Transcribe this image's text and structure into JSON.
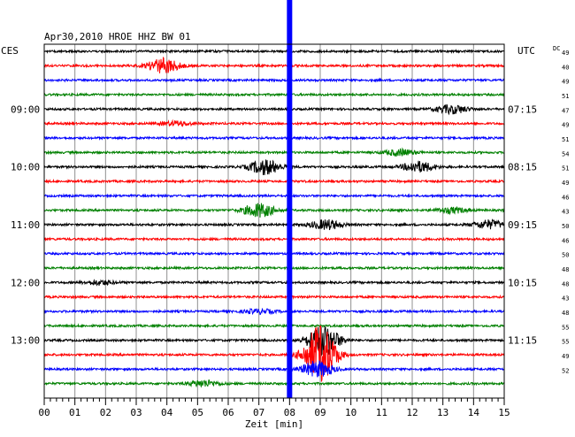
{
  "header": {
    "title": "Apr30,2010   HROE HHZ BW 01",
    "left_zone": "CES",
    "right_zone": "UTC",
    "dc_label": "DC"
  },
  "chart_data": {
    "type": "line",
    "title": "Apr30,2010   HROE HHZ BW 01",
    "xlabel": "Zeit [min]",
    "xlim": [
      0,
      15
    ],
    "x_ticks": [
      "00",
      "01",
      "02",
      "03",
      "04",
      "05",
      "06",
      "07",
      "08",
      "09",
      "10",
      "11",
      "12",
      "13",
      "14",
      "15"
    ],
    "grid": true,
    "trace_count": 24,
    "trace_colors": [
      "#000000",
      "#ff0000",
      "#0000ff",
      "#008000"
    ],
    "left_time_labels": [
      {
        "trace": 4,
        "label": "09:00"
      },
      {
        "trace": 8,
        "label": "10:00"
      },
      {
        "trace": 12,
        "label": "11:00"
      },
      {
        "trace": 16,
        "label": "12:00"
      },
      {
        "trace": 20,
        "label": "13:00"
      }
    ],
    "right_time_labels": [
      {
        "trace": 4,
        "label": "07:15"
      },
      {
        "trace": 8,
        "label": "08:15"
      },
      {
        "trace": 12,
        "label": "09:15"
      },
      {
        "trace": 16,
        "label": "10:15"
      },
      {
        "trace": 20,
        "label": "11:15"
      }
    ],
    "dc_values": [
      "49",
      "40",
      "49",
      "51",
      "47",
      "49",
      "51",
      "54",
      "51",
      "49",
      "46",
      "43",
      "50",
      "46",
      "50",
      "48",
      "48",
      "43",
      "48",
      "55",
      "55",
      "49",
      "52"
    ],
    "marker": {
      "minute": 8.0,
      "color": "#0000ff"
    },
    "events": [
      {
        "trace": 1,
        "minute": 3.9,
        "amp": 1.4
      },
      {
        "trace": 4,
        "minute": 13.3,
        "amp": 0.8
      },
      {
        "trace": 5,
        "minute": 4.3,
        "amp": 0.4
      },
      {
        "trace": 7,
        "minute": 11.6,
        "amp": 0.6
      },
      {
        "trace": 8,
        "minute": 7.2,
        "amp": 1.4
      },
      {
        "trace": 8,
        "minute": 12.2,
        "amp": 1.0
      },
      {
        "trace": 11,
        "minute": 7.0,
        "amp": 1.3
      },
      {
        "trace": 11,
        "minute": 13.3,
        "amp": 0.5
      },
      {
        "trace": 12,
        "minute": 9.2,
        "amp": 0.9
      },
      {
        "trace": 12,
        "minute": 14.5,
        "amp": 0.8
      },
      {
        "trace": 16,
        "minute": 1.8,
        "amp": 0.4
      },
      {
        "trace": 18,
        "minute": 7.0,
        "amp": 0.4
      },
      {
        "trace": 20,
        "minute": 9.1,
        "amp": 3.0
      },
      {
        "trace": 21,
        "minute": 9.0,
        "amp": 5.5
      },
      {
        "trace": 22,
        "minute": 8.9,
        "amp": 1.5
      },
      {
        "trace": 23,
        "minute": 5.2,
        "amp": 0.6
      }
    ]
  }
}
